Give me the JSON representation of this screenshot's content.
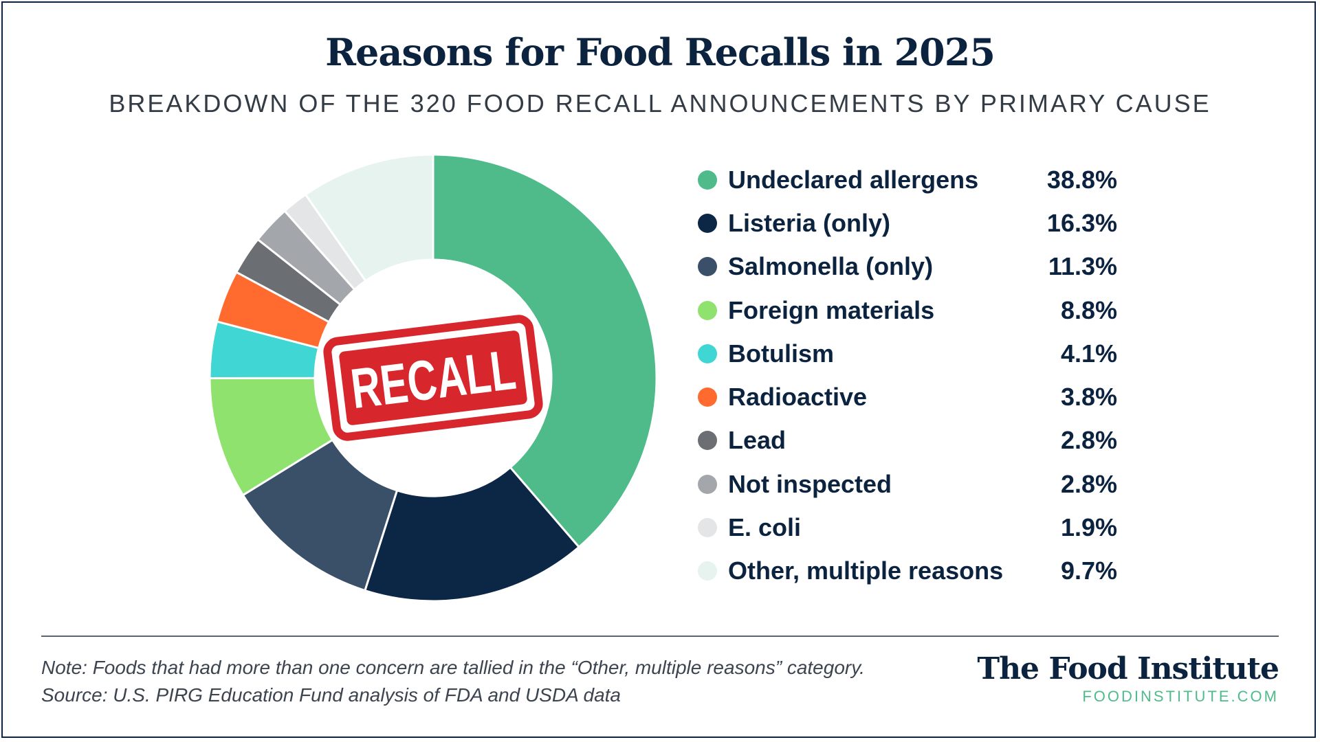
{
  "title": "Reasons for Food Recalls in 2025",
  "subtitle": "BREAKDOWN OF THE 320 FOOD RECALL ANNOUNCEMENTS BY PRIMARY CAUSE",
  "stamp_text": "RECALL",
  "note": "Note: Foods that had more than one concern are tallied in the “Other, multiple reasons” category.",
  "source": "Source: U.S. PIRG Education Fund analysis of FDA and USDA data",
  "brand": {
    "name": "The Food Institute",
    "url": "FOODINSTITUTE.COM"
  },
  "chart_data": {
    "type": "pie",
    "title": "Reasons for Food Recalls in 2025",
    "subtitle": "BREAKDOWN OF THE 320 FOOD RECALL ANNOUNCEMENTS BY PRIMARY CAUSE",
    "legend_position": "right",
    "slices": [
      {
        "label": "Undeclared allergens",
        "value": 38.8,
        "display": "38.8%",
        "color": "#4fbb8a"
      },
      {
        "label": "Listeria (only)",
        "value": 16.3,
        "display": "16.3%",
        "color": "#0c2645"
      },
      {
        "label": "Salmonella (only)",
        "value": 11.3,
        "display": "11.3%",
        "color": "#3a5069"
      },
      {
        "label": "Foreign materials",
        "value": 8.8,
        "display": "8.8%",
        "color": "#90e26e"
      },
      {
        "label": "Botulism",
        "value": 4.1,
        "display": "4.1%",
        "color": "#3fd6d3"
      },
      {
        "label": "Radioactive",
        "value": 3.8,
        "display": "3.8%",
        "color": "#ff6a2e"
      },
      {
        "label": "Lead",
        "value": 2.8,
        "display": "2.8%",
        "color": "#6b6e72"
      },
      {
        "label": "Not inspected",
        "value": 2.8,
        "display": "2.8%",
        "color": "#a3a6aa"
      },
      {
        "label": "E. coli",
        "value": 1.9,
        "display": "1.9%",
        "color": "#e4e5e6"
      },
      {
        "label": "Other, multiple reasons",
        "value": 9.7,
        "display": "9.7%",
        "color": "#e6f3ee"
      }
    ]
  }
}
